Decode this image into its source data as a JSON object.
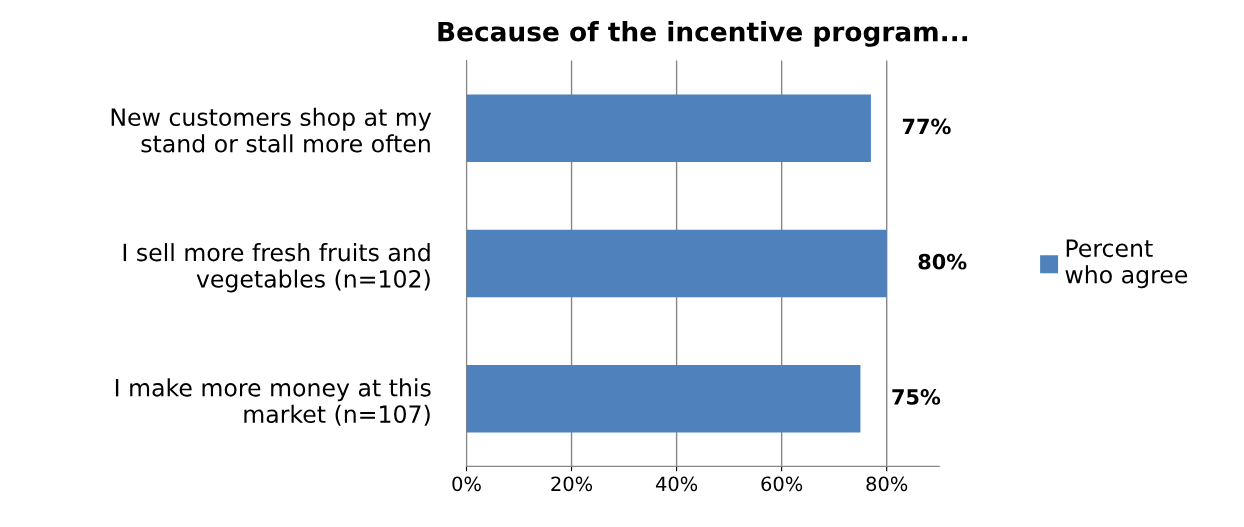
{
  "chart_data": {
    "type": "bar",
    "orientation": "horizontal",
    "title": "Because of the incentive program...",
    "categories": [
      "New customers shop at my\nstand or stall more often",
      "I sell more fresh fruits and\nvegetables (n=102)",
      "I make more money at this\nmarket (n=107)"
    ],
    "series": [
      {
        "name": "Percent\nwho agree",
        "color": "#4f81bd",
        "values": [
          77,
          80,
          75
        ],
        "value_labels": [
          "77%",
          "80%",
          "75%"
        ]
      }
    ],
    "xlim": [
      0,
      90
    ],
    "xticks": [
      {
        "value": 0,
        "label": "0%"
      },
      {
        "value": 20,
        "label": "20%"
      },
      {
        "value": 40,
        "label": "40%"
      },
      {
        "value": 60,
        "label": "60%"
      },
      {
        "value": 80,
        "label": "80%"
      }
    ],
    "grid": "x",
    "legend": "right"
  }
}
